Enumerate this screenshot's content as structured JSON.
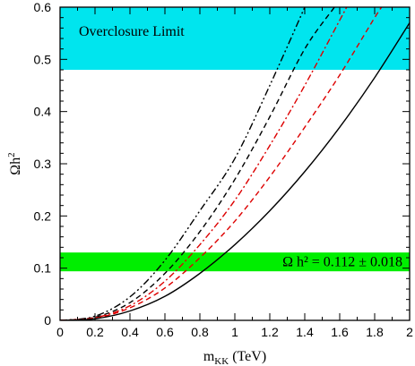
{
  "chart_data": {
    "type": "line",
    "xlabel": "m",
    "xlabel_sub": "KK",
    "xlabel_unit": " (TeV)",
    "ylabel": "Ωh",
    "ylabel_sup": "2",
    "xlim": [
      0,
      2
    ],
    "ylim": [
      0,
      0.6
    ],
    "x_ticks": [
      "0",
      "0.2",
      "0.4",
      "0.6",
      "0.8",
      "1",
      "1.2",
      "1.4",
      "1.6",
      "1.8",
      "2"
    ],
    "y_ticks": [
      "0",
      "0.1",
      "0.2",
      "0.3",
      "0.4",
      "0.5",
      "0.6"
    ],
    "bands": [
      {
        "label": "Overclosure Limit",
        "y_min": 0.48,
        "y_max": 0.6,
        "color": "#00e5ee"
      },
      {
        "label": "Ω h² = 0.112 ± 0.018",
        "y_min": 0.094,
        "y_max": 0.13,
        "color": "#00ee00"
      }
    ],
    "series": [
      {
        "color": "#000000",
        "dash": "8,3,2,3,2,3",
        "points": [
          [
            0,
            0
          ],
          [
            0.2,
            0.008
          ],
          [
            0.4,
            0.045
          ],
          [
            0.6,
            0.115
          ],
          [
            0.8,
            0.21
          ],
          [
            1.0,
            0.31
          ],
          [
            1.2,
            0.45
          ],
          [
            1.4,
            0.6
          ]
        ]
      },
      {
        "color": "#000000",
        "dash": "6,4",
        "points": [
          [
            0,
            0
          ],
          [
            0.2,
            0.006
          ],
          [
            0.4,
            0.034
          ],
          [
            0.6,
            0.09
          ],
          [
            0.8,
            0.17
          ],
          [
            1.0,
            0.27
          ],
          [
            1.2,
            0.39
          ],
          [
            1.4,
            0.52
          ],
          [
            1.57,
            0.6
          ]
        ]
      },
      {
        "color": "#dd0000",
        "dash": "7,3,2,3",
        "points": [
          [
            0,
            0
          ],
          [
            0.2,
            0.005
          ],
          [
            0.4,
            0.028
          ],
          [
            0.6,
            0.075
          ],
          [
            0.8,
            0.145
          ],
          [
            1.0,
            0.23
          ],
          [
            1.2,
            0.335
          ],
          [
            1.4,
            0.45
          ],
          [
            1.6,
            0.575
          ],
          [
            1.64,
            0.6
          ]
        ]
      },
      {
        "color": "#dd0000",
        "dash": "6,4",
        "points": [
          [
            0,
            0
          ],
          [
            0.2,
            0.004
          ],
          [
            0.4,
            0.024
          ],
          [
            0.6,
            0.062
          ],
          [
            0.8,
            0.12
          ],
          [
            1.0,
            0.19
          ],
          [
            1.2,
            0.275
          ],
          [
            1.4,
            0.37
          ],
          [
            1.6,
            0.47
          ],
          [
            1.8,
            0.58
          ],
          [
            1.84,
            0.6
          ]
        ]
      },
      {
        "color": "#000000",
        "dash": "",
        "points": [
          [
            0,
            0
          ],
          [
            0.2,
            0.003
          ],
          [
            0.4,
            0.018
          ],
          [
            0.6,
            0.046
          ],
          [
            0.8,
            0.09
          ],
          [
            1.0,
            0.145
          ],
          [
            1.2,
            0.21
          ],
          [
            1.4,
            0.285
          ],
          [
            1.6,
            0.37
          ],
          [
            1.8,
            0.465
          ],
          [
            2.0,
            0.57
          ]
        ]
      }
    ]
  }
}
